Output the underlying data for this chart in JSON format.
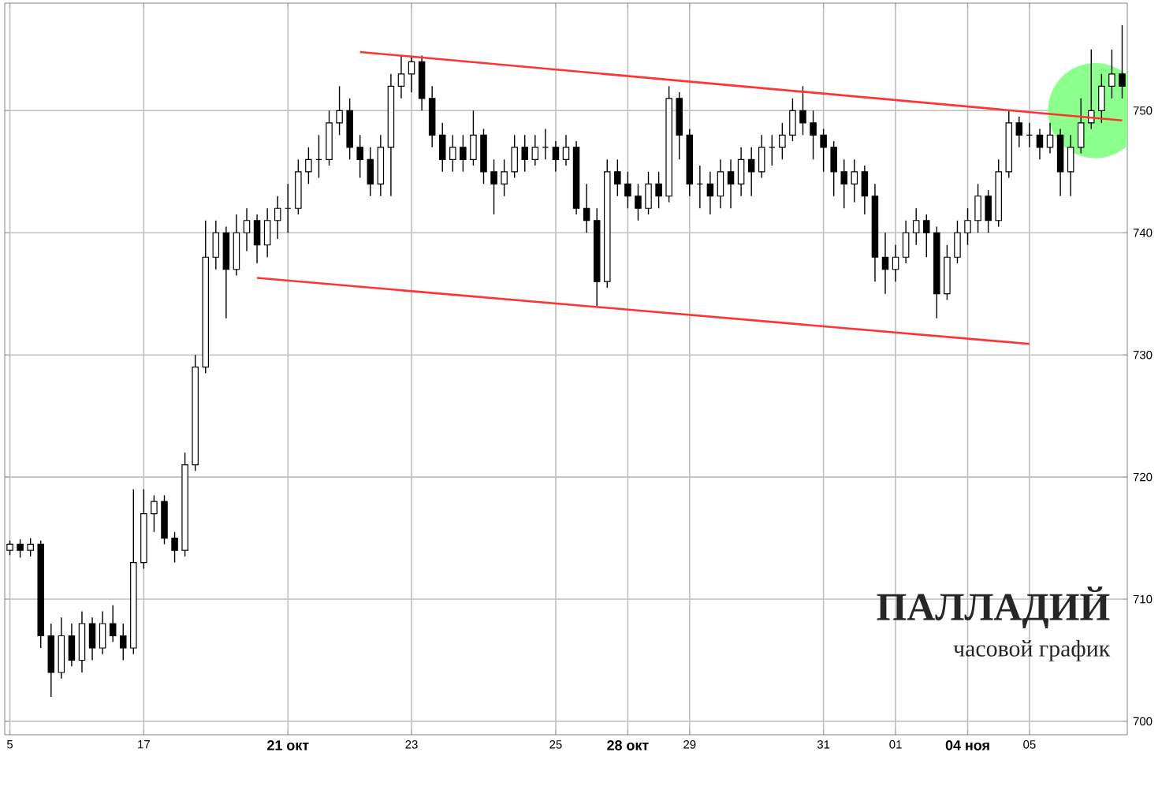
{
  "chart_data": {
    "type": "candlestick",
    "title": "ПАЛЛАДИЙ",
    "subtitle": "часовой график",
    "categories": [
      "5",
      null,
      null,
      null,
      null,
      null,
      null,
      null,
      null,
      null,
      null,
      null,
      null,
      "17",
      null,
      null,
      null,
      null,
      null,
      null,
      null,
      null,
      null,
      null,
      null,
      null,
      null,
      "21 окт",
      null,
      null,
      null,
      null,
      null,
      null,
      null,
      null,
      null,
      null,
      null,
      "23",
      null,
      null,
      null,
      null,
      null,
      null,
      null,
      null,
      null,
      null,
      null,
      null,
      null,
      "25",
      null,
      null,
      null,
      null,
      null,
      null,
      "28 окт",
      null,
      null,
      null,
      null,
      null,
      "29",
      null,
      null,
      null,
      null,
      null,
      null,
      null,
      null,
      null,
      null,
      null,
      null,
      "31",
      null,
      null,
      null,
      null,
      null,
      null,
      "01",
      null,
      null,
      null,
      null,
      null,
      null,
      "04 ноя",
      null,
      null,
      null,
      null,
      null,
      "05",
      null,
      null,
      null,
      null,
      null,
      null,
      null,
      null,
      null
    ],
    "ohlc": [
      [
        714,
        714.8,
        713.6,
        714.5
      ],
      [
        714.5,
        714.9,
        713.4,
        714
      ],
      [
        714,
        715,
        713.5,
        714.5
      ],
      [
        714.5,
        714.8,
        706,
        707
      ],
      [
        707,
        708,
        702,
        704
      ],
      [
        704,
        708.5,
        703.5,
        707
      ],
      [
        707,
        708,
        704.5,
        705
      ],
      [
        705,
        709,
        704,
        708
      ],
      [
        708,
        708.5,
        705,
        706
      ],
      [
        706,
        709,
        705.5,
        708
      ],
      [
        708,
        709.5,
        706.5,
        707
      ],
      [
        707,
        708,
        705,
        706
      ],
      [
        706,
        719,
        705.5,
        713
      ],
      [
        713,
        719,
        712.5,
        717
      ],
      [
        717,
        718.5,
        715.5,
        718
      ],
      [
        718,
        718.5,
        714.5,
        715
      ],
      [
        715,
        715.5,
        713,
        714
      ],
      [
        714,
        722,
        713.5,
        721
      ],
      [
        721,
        730,
        720.5,
        729
      ],
      [
        729,
        741,
        728.5,
        738
      ],
      [
        738,
        741,
        737,
        740
      ],
      [
        740,
        740.5,
        733,
        737
      ],
      [
        737,
        741.5,
        736.5,
        740
      ],
      [
        740,
        742,
        738.5,
        741
      ],
      [
        741,
        741.5,
        737.5,
        739
      ],
      [
        739,
        742,
        738,
        741
      ],
      [
        741,
        743,
        739.5,
        742
      ],
      [
        742,
        744,
        740,
        742
      ],
      [
        742,
        746,
        741.5,
        745
      ],
      [
        745,
        747,
        744,
        746
      ],
      [
        746,
        748,
        744.5,
        746
      ],
      [
        746,
        750,
        745.5,
        749
      ],
      [
        749,
        752,
        748,
        750
      ],
      [
        750,
        751,
        746,
        747
      ],
      [
        747,
        748,
        744.5,
        746
      ],
      [
        746,
        747,
        743,
        744
      ],
      [
        744,
        748,
        743,
        747
      ],
      [
        747,
        753,
        743,
        752
      ],
      [
        752,
        754.5,
        751,
        753
      ],
      [
        753,
        754.5,
        751.5,
        754
      ],
      [
        754,
        754.5,
        750,
        751
      ],
      [
        751,
        752,
        747,
        748
      ],
      [
        748,
        749,
        745,
        746
      ],
      [
        746,
        748,
        745,
        747
      ],
      [
        747,
        748,
        745,
        746
      ],
      [
        746,
        750,
        745.5,
        748
      ],
      [
        748,
        748.5,
        744,
        745
      ],
      [
        745,
        746,
        741.5,
        744
      ],
      [
        744,
        746,
        743,
        745
      ],
      [
        745,
        748,
        744.5,
        747
      ],
      [
        747,
        748,
        745,
        746
      ],
      [
        746,
        748,
        745.5,
        747
      ],
      [
        747,
        748.5,
        746,
        747
      ],
      [
        747,
        747.5,
        745,
        746
      ],
      [
        746,
        748,
        745.5,
        747
      ],
      [
        747,
        747.5,
        741.5,
        742
      ],
      [
        742,
        744,
        740,
        741
      ],
      [
        741,
        742,
        734,
        736
      ],
      [
        736,
        746,
        735.5,
        745
      ],
      [
        745,
        746,
        743,
        744
      ],
      [
        744,
        745,
        742,
        743
      ],
      [
        743,
        744,
        741,
        742
      ],
      [
        742,
        745,
        741.5,
        744
      ],
      [
        744,
        745,
        742,
        743
      ],
      [
        743,
        752,
        742.5,
        751
      ],
      [
        751,
        751.5,
        746,
        748
      ],
      [
        748,
        748.5,
        743,
        744
      ],
      [
        744,
        745.5,
        742,
        744
      ],
      [
        744,
        745,
        741.5,
        743
      ],
      [
        743,
        746,
        742,
        745
      ],
      [
        745,
        746,
        742,
        744
      ],
      [
        744,
        747,
        743,
        746
      ],
      [
        746,
        747,
        743,
        745
      ],
      [
        745,
        748,
        744.5,
        747
      ],
      [
        747,
        748,
        745.5,
        747
      ],
      [
        747,
        749,
        746,
        748
      ],
      [
        748,
        751,
        747.5,
        750
      ],
      [
        750,
        752,
        748,
        749
      ],
      [
        749,
        750,
        746,
        748
      ],
      [
        748,
        748.5,
        745,
        747
      ],
      [
        747,
        747.5,
        743,
        745
      ],
      [
        745,
        746,
        742,
        744
      ],
      [
        744,
        746,
        742.5,
        745
      ],
      [
        745,
        745.5,
        741.5,
        743
      ],
      [
        743,
        744,
        736,
        738
      ],
      [
        738,
        740,
        735,
        737
      ],
      [
        737,
        739,
        736,
        738
      ],
      [
        738,
        741,
        737.5,
        740
      ],
      [
        740,
        742,
        739,
        741
      ],
      [
        741,
        741.5,
        738,
        740
      ],
      [
        740,
        740.5,
        733,
        735
      ],
      [
        735,
        739,
        734.5,
        738
      ],
      [
        738,
        741,
        737.5,
        740
      ],
      [
        740,
        742,
        739,
        741
      ],
      [
        741,
        744,
        740,
        743
      ],
      [
        743,
        743.5,
        740,
        741
      ],
      [
        741,
        746,
        740.5,
        745
      ],
      [
        745,
        750,
        744.5,
        749
      ],
      [
        749,
        749.5,
        747,
        748
      ],
      [
        748,
        749,
        747,
        748
      ],
      [
        748,
        748.5,
        746,
        747
      ],
      [
        747,
        749,
        746.5,
        748
      ],
      [
        748,
        748.5,
        743,
        745
      ],
      [
        745,
        748,
        743,
        747
      ],
      [
        747,
        751,
        746.5,
        749
      ],
      [
        749,
        755,
        748.5,
        750
      ],
      [
        750,
        753,
        749,
        752
      ],
      [
        752,
        755,
        751,
        753
      ],
      [
        753,
        757,
        751,
        752
      ]
    ],
    "series": [
      {
        "type": "line",
        "color": "#ff3333",
        "values": [
          null,
          null,
          null,
          null,
          null,
          null,
          null,
          null,
          null,
          null,
          null,
          null,
          null,
          null,
          null,
          null,
          null,
          null,
          null,
          null,
          null,
          null,
          null,
          null,
          null,
          null,
          null,
          null,
          null,
          null,
          null,
          null,
          null,
          null,
          754.8,
          null,
          null,
          null,
          null,
          null,
          null,
          null,
          null,
          null,
          null,
          null,
          null,
          null,
          null,
          null,
          null,
          null,
          null,
          null,
          null,
          null,
          null,
          null,
          null,
          null,
          null,
          null,
          null,
          null,
          null,
          null,
          null,
          null,
          null,
          null,
          null,
          null,
          null,
          null,
          null,
          null,
          null,
          null,
          null,
          null,
          null,
          null,
          null,
          null,
          null,
          null,
          null,
          null,
          null,
          null,
          null,
          null,
          null,
          null,
          null,
          null,
          null,
          null,
          null,
          null,
          null,
          null,
          null,
          null,
          null,
          null,
          null,
          null,
          749.2
        ]
      },
      {
        "type": "line",
        "color": "#ff3333",
        "values": [
          null,
          null,
          null,
          null,
          null,
          null,
          null,
          null,
          null,
          null,
          null,
          null,
          null,
          null,
          null,
          null,
          null,
          null,
          null,
          null,
          null,
          null,
          null,
          null,
          736.3,
          null,
          null,
          null,
          null,
          null,
          null,
          null,
          null,
          null,
          null,
          null,
          null,
          null,
          null,
          null,
          null,
          null,
          null,
          null,
          null,
          null,
          null,
          null,
          null,
          null,
          null,
          null,
          null,
          null,
          null,
          null,
          null,
          null,
          null,
          null,
          null,
          null,
          null,
          null,
          null,
          null,
          null,
          null,
          null,
          null,
          null,
          null,
          null,
          null,
          null,
          null,
          null,
          null,
          null,
          null,
          null,
          null,
          null,
          null,
          null,
          null,
          null,
          null,
          null,
          null,
          null,
          null,
          null,
          null,
          null,
          null,
          null,
          null,
          null,
          730.9,
          null,
          null,
          null,
          null,
          null,
          null,
          null,
          null,
          null
        ]
      }
    ],
    "ylim": [
      698.9,
      758.8
    ],
    "yticks": [
      700,
      710,
      720,
      730,
      740,
      750
    ],
    "grid": true
  }
}
